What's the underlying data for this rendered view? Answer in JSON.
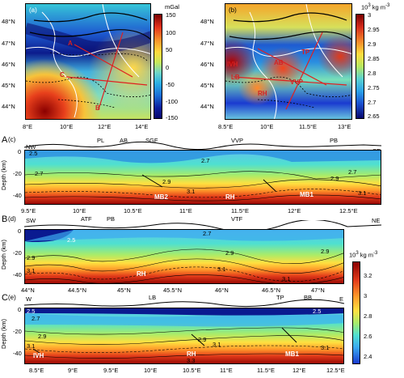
{
  "map_a": {
    "panel_label": "(a)",
    "unit": "mGal",
    "lat_ticks": [
      "48°N",
      "47°N",
      "46°N",
      "45°N",
      "44°N"
    ],
    "lon_ticks": [
      "8°E",
      "10°E",
      "12°E",
      "14°E"
    ],
    "cbar_ticks": [
      "150",
      "100",
      "50",
      "0",
      "-50",
      "-100",
      "-150"
    ],
    "profile_labels": [
      "A",
      "B",
      "C"
    ]
  },
  "map_b": {
    "panel_label": "(b)",
    "unit_power": "10",
    "unit_exp": "3",
    "unit_rest": "kg m",
    "unit_sup": "-3",
    "lat_ticks": [
      "48°N",
      "47°N",
      "46°N",
      "45°N",
      "44°N"
    ],
    "lon_ticks": [
      "8.5°E",
      "10°E",
      "11.5°E",
      "13°E"
    ],
    "cbar_ticks": [
      "3",
      "2.95",
      "2.9",
      "2.85",
      "2.8",
      "2.75",
      "2.7",
      "2.65"
    ],
    "region_labels": [
      "IVH",
      "AB",
      "TP",
      "LB",
      "VVP",
      "RH"
    ]
  },
  "section_a": {
    "letter": "A",
    "panel_label": "(c)",
    "left_end": "NW",
    "right_end": "SE",
    "top_labels": [
      "PL",
      "AB",
      "SGF",
      "VVP",
      "PB"
    ],
    "y_ticks": [
      "0",
      "-20",
      "-40"
    ],
    "ylabel": "Depth (km)",
    "x_ticks": [
      "9.5°E",
      "10°E",
      "10.5°E",
      "11°E",
      "11.5°E",
      "12°E",
      "12.5°E"
    ],
    "contours": [
      "2.5",
      "2.7",
      "2.7",
      "2.9",
      "2.9",
      "2.7",
      "3.1",
      "3.1"
    ],
    "body_labels": [
      "MB2",
      "RH",
      "MB1"
    ]
  },
  "section_b": {
    "letter": "B",
    "panel_label": "(d)",
    "left_end": "SW",
    "right_end": "NE",
    "top_labels": [
      "ATF",
      "PB",
      "VTF"
    ],
    "y_ticks": [
      "0",
      "-20",
      "-40"
    ],
    "ylabel": "Depth (km)",
    "x_ticks": [
      "44°N",
      "44.5°N",
      "45°N",
      "45.5°N",
      "46°N",
      "46.5°N",
      "47°N"
    ],
    "contours": [
      "2.5",
      "2.7",
      "2.9",
      "2.9",
      "2.9",
      "3.1",
      "3.1",
      "3.1"
    ],
    "body_labels": [
      "RH"
    ]
  },
  "section_c": {
    "letter": "C",
    "panel_label": "(e)",
    "left_end": "W",
    "right_end": "E",
    "top_labels": [
      "LB",
      "TP",
      "BB"
    ],
    "y_ticks": [
      "0",
      "-20",
      "-40"
    ],
    "ylabel": "Depth (km)",
    "x_ticks": [
      "8.5°E",
      "9°E",
      "9.5°E",
      "10°E",
      "10.5°E",
      "11°E",
      "11.5°E",
      "12°E",
      "12.5°E"
    ],
    "contours": [
      "2.5",
      "2.5",
      "2.7",
      "2.9",
      "2.9",
      "3.1",
      "3.1",
      "3.1",
      "3.3"
    ],
    "body_labels": [
      "IVH",
      "RH",
      "MB1"
    ]
  },
  "section_cbar": {
    "unit_power": "10",
    "unit_exp": "3",
    "unit_rest": "kg m",
    "unit_sup": "-3",
    "ticks": [
      "3.2",
      "3",
      "2.8",
      "2.6",
      "2.4"
    ]
  }
}
